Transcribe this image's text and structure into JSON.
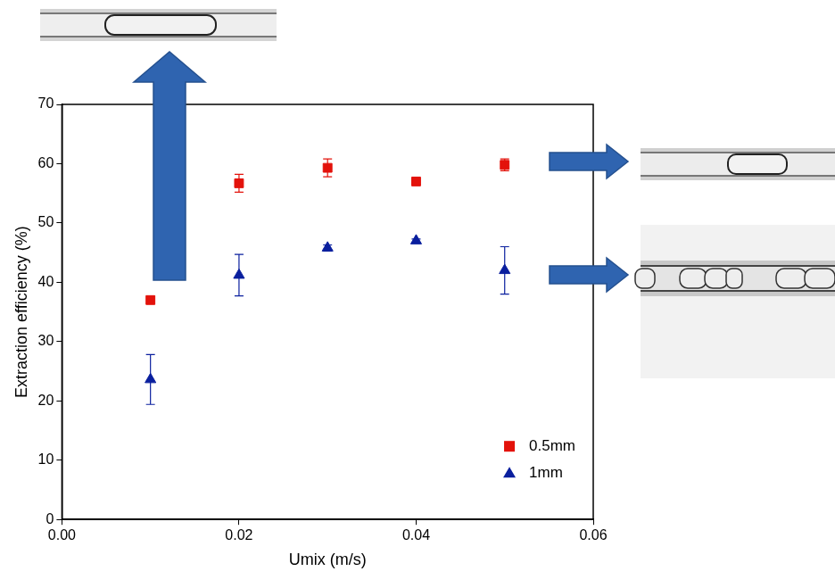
{
  "chart_data": {
    "type": "scatter",
    "x_label": "Umix (m/s)",
    "y_label": "Extraction efficiency (%)",
    "x": [
      0.01,
      0.02,
      0.03,
      0.04,
      0.05
    ],
    "series": [
      {
        "name": "0.5mm",
        "color": "#e3120b",
        "marker": "square",
        "values": [
          37,
          56.7,
          59.3,
          57,
          59.8
        ],
        "errors": [
          0,
          1.5,
          1.5,
          0,
          1.0
        ]
      },
      {
        "name": "1mm",
        "color": "#0a1f9e",
        "marker": "triangle",
        "values": [
          23.6,
          41.2,
          45.8,
          47,
          42
        ],
        "errors": [
          4.2,
          3.5,
          0.5,
          0.3,
          4.0
        ]
      }
    ],
    "xlim": [
      0,
      0.06
    ],
    "xticks": [
      {
        "value": 0,
        "label": "0.00"
      },
      {
        "value": 0.02,
        "label": "0.02"
      },
      {
        "value": 0.04,
        "label": "0.04"
      },
      {
        "value": 0.06,
        "label": "0.06"
      }
    ],
    "ylim": [
      0,
      70
    ],
    "yticks": [
      0,
      10,
      20,
      30,
      40,
      50,
      60,
      70
    ],
    "grid": false,
    "legend": "lower right"
  }
}
